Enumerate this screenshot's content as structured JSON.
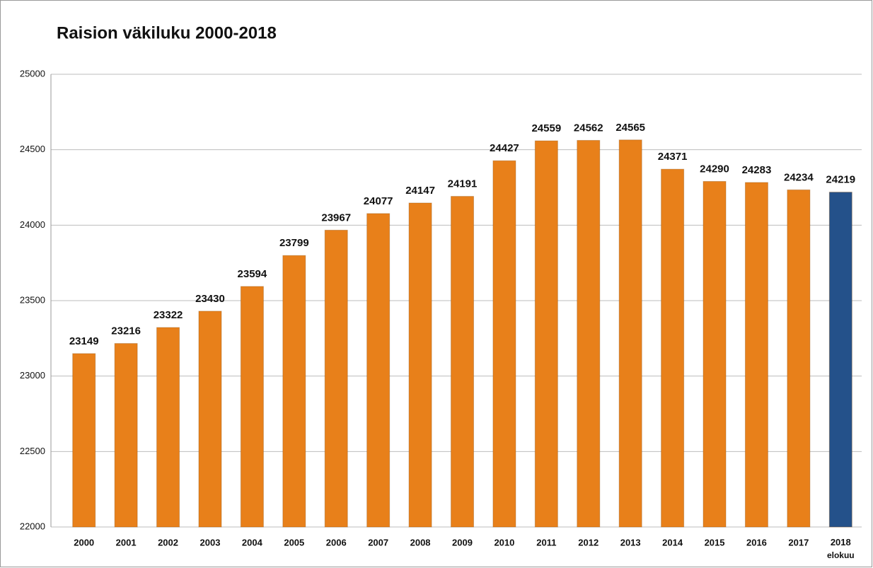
{
  "chart_data": {
    "type": "bar",
    "title": "Raision väkiluku 2000-2018",
    "categories": [
      "2000",
      "2001",
      "2002",
      "2003",
      "2004",
      "2005",
      "2006",
      "2007",
      "2008",
      "2009",
      "2010",
      "2011",
      "2012",
      "2013",
      "2014",
      "2015",
      "2016",
      "2017",
      "2018 elokuu"
    ],
    "values": [
      23149,
      23216,
      23322,
      23430,
      23594,
      23799,
      23967,
      24077,
      24147,
      24191,
      24427,
      24559,
      24562,
      24565,
      24371,
      24290,
      24283,
      24234,
      24219
    ],
    "colors": [
      "#e8801a",
      "#e8801a",
      "#e8801a",
      "#e8801a",
      "#e8801a",
      "#e8801a",
      "#e8801a",
      "#e8801a",
      "#e8801a",
      "#e8801a",
      "#e8801a",
      "#e8801a",
      "#e8801a",
      "#e8801a",
      "#e8801a",
      "#e8801a",
      "#e8801a",
      "#e8801a",
      "#24518a"
    ],
    "ylim": [
      22000,
      25000
    ],
    "yticks": [
      22000,
      22500,
      23000,
      23500,
      24000,
      24500,
      25000
    ],
    "grid": true
  }
}
